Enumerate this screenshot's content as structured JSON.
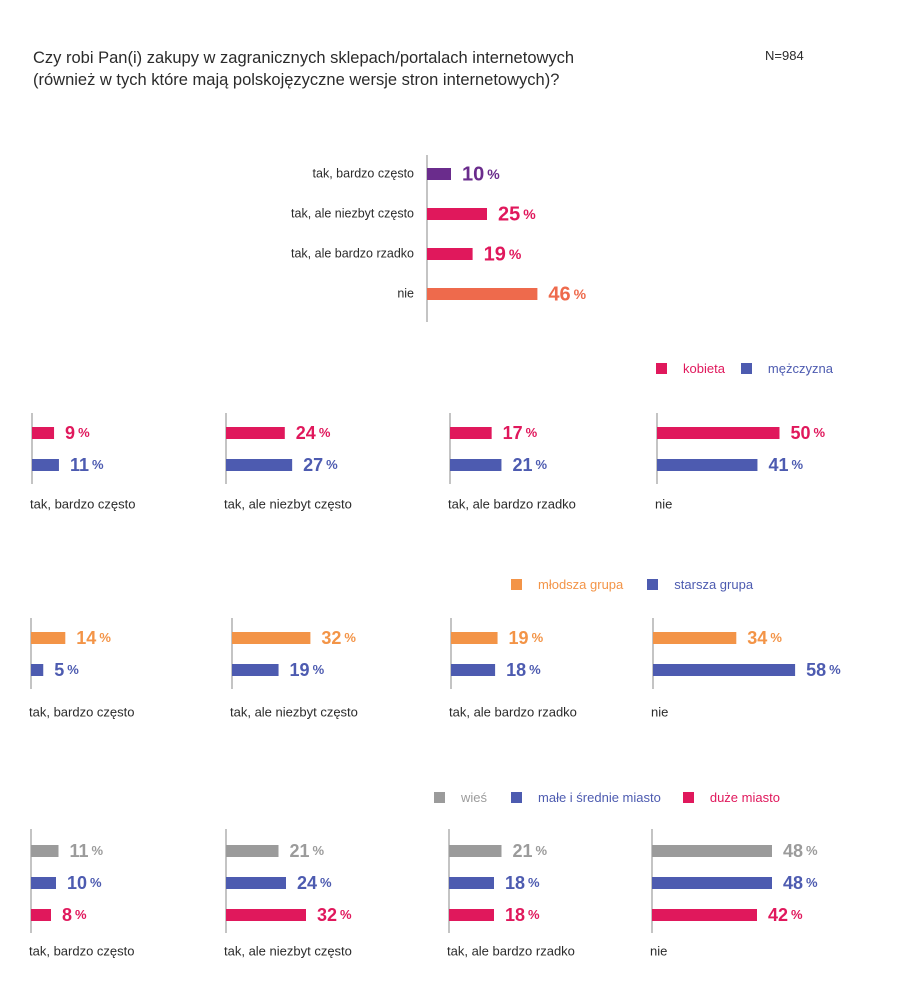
{
  "header": {
    "title_line1": "Czy robi Pan(i) zakupy w zagranicznych sklepach/portalach internetowych",
    "title_line2": "(również w tych które mają polskojęzyczne wersje stron internetowych)?",
    "n_label": "N=984"
  },
  "colors": {
    "purple": "#6a2c8c",
    "pink": "#e0185c",
    "orange_red": "#ee6a4c",
    "blue": "#4d5bb0",
    "orange": "#f39447",
    "gray": "#9b9b9b"
  },
  "legends": {
    "gender": [
      {
        "label": "kobieta",
        "color": "#e0185c"
      },
      {
        "label": "mężczyzna",
        "color": "#4d5bb0"
      }
    ],
    "age": [
      {
        "label": "młodsza grupa",
        "color": "#f39447"
      },
      {
        "label": "starsza grupa",
        "color": "#4d5bb0"
      }
    ],
    "place": [
      {
        "label": "wieś",
        "color": "#9b9b9b"
      },
      {
        "label": "małe i średnie miasto",
        "color": "#4d5bb0"
      },
      {
        "label": "duże miasto",
        "color": "#e0185c"
      }
    ]
  },
  "chart_data": [
    {
      "type": "bar",
      "orientation": "horizontal",
      "categories": [
        "tak, bardzo często",
        "tak, ale niezbyt często",
        "tak, ale bardzo rzadko",
        "nie"
      ],
      "values": [
        10,
        25,
        19,
        46
      ],
      "colors": [
        "#6a2c8c",
        "#e0185c",
        "#e0185c",
        "#ee6a4c"
      ],
      "unit": "%"
    },
    {
      "type": "bar",
      "orientation": "horizontal",
      "panels": [
        "tak, bardzo często",
        "tak, ale niezbyt często",
        "tak, ale bardzo rzadko",
        "nie"
      ],
      "series": [
        {
          "name": "kobieta",
          "values": [
            9,
            24,
            17,
            50
          ]
        },
        {
          "name": "mężczyzna",
          "values": [
            11,
            27,
            21,
            41
          ]
        }
      ],
      "unit": "%"
    },
    {
      "type": "bar",
      "orientation": "horizontal",
      "panels": [
        "tak, bardzo często",
        "tak, ale niezbyt często",
        "tak, ale bardzo rzadko",
        "nie"
      ],
      "series": [
        {
          "name": "młodsza grupa",
          "values": [
            14,
            32,
            19,
            34
          ]
        },
        {
          "name": "starsza grupa",
          "values": [
            5,
            19,
            18,
            58
          ]
        }
      ],
      "unit": "%"
    },
    {
      "type": "bar",
      "orientation": "horizontal",
      "panels": [
        "tak, bardzo często",
        "tak, ale niezbyt często",
        "tak, ale bardzo rzadko",
        "nie"
      ],
      "series": [
        {
          "name": "wieś",
          "values": [
            11,
            21,
            21,
            48
          ]
        },
        {
          "name": "małe i średnie miasto",
          "values": [
            10,
            24,
            18,
            48
          ]
        },
        {
          "name": "duże miasto",
          "values": [
            8,
            32,
            18,
            42
          ]
        }
      ],
      "unit": "%"
    }
  ]
}
